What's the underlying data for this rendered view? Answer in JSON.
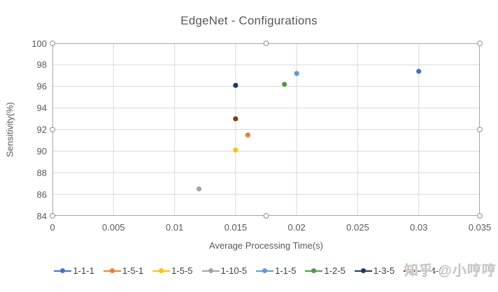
{
  "watermark": "知乎 @小哼哼",
  "chart_data": {
    "type": "scatter",
    "title": "EdgeNet - Configurations",
    "xlabel": "Average Processing Time(s)",
    "ylabel": "Sensitivity(%)",
    "xlim": [
      0,
      0.035
    ],
    "ylim": [
      84,
      100
    ],
    "x_ticks": [
      0,
      0.005,
      0.01,
      0.015,
      0.02,
      0.025,
      0.03,
      0.035
    ],
    "x_tick_labels": [
      "0",
      "0.005",
      "0.01",
      "0.015",
      "0.02",
      "0.025",
      "0.03",
      "0.035"
    ],
    "y_ticks": [
      84,
      86,
      88,
      90,
      92,
      94,
      96,
      98,
      100
    ],
    "y_tick_labels": [
      "84",
      "86",
      "88",
      "90",
      "92",
      "94",
      "96",
      "98",
      "100"
    ],
    "grid": true,
    "legend_position": "bottom",
    "series": [
      {
        "name": "1-1-1",
        "color": "#4472C4",
        "points": [
          [
            0.03,
            97.4
          ]
        ]
      },
      {
        "name": "1-5-1",
        "color": "#ED7D31",
        "points": [
          [
            0.016,
            91.5
          ]
        ]
      },
      {
        "name": "1-5-5",
        "color": "#FFC000",
        "points": [
          [
            0.015,
            90.1
          ]
        ]
      },
      {
        "name": "1-10-5",
        "color": "#A5A5A5",
        "points": [
          [
            0.012,
            86.5
          ]
        ]
      },
      {
        "name": "1-1-5",
        "color": "#5B9BD5",
        "points": [
          [
            0.02,
            97.2
          ]
        ]
      },
      {
        "name": "1-2-5",
        "color": "#4E9B49",
        "points": [
          [
            0.019,
            96.2
          ]
        ]
      },
      {
        "name": "1-3-5",
        "color": "#1F3864",
        "points": [
          [
            0.015,
            96.1
          ]
        ]
      },
      {
        "name": "1-4-5",
        "color": "#843C0C",
        "points": [
          [
            0.015,
            93.0
          ]
        ]
      }
    ],
    "selection_handles_visible": true
  },
  "colors": {
    "grid": "#D9D9D9",
    "plot_border": "#A6A6A6",
    "axis_text": "#595959",
    "legend_text": "#404040",
    "handle_fill": "#FFFFFF",
    "handle_border": "#8C8C8C",
    "background": "#FFFFFF"
  }
}
